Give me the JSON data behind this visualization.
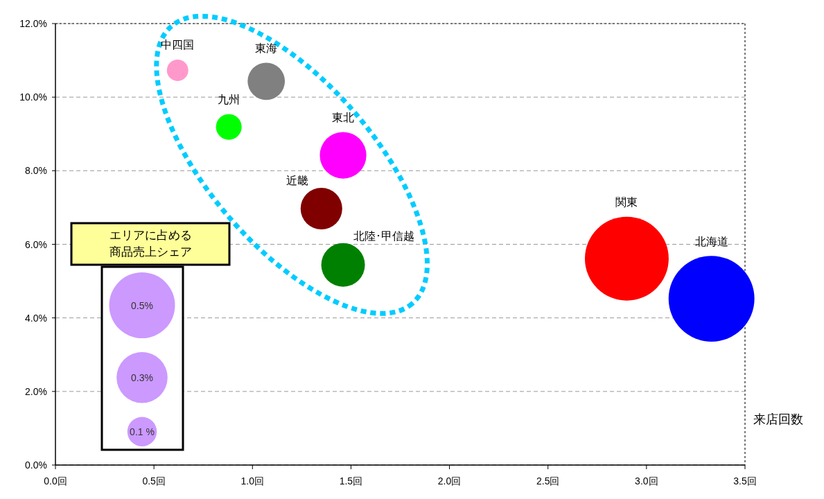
{
  "chart_data": {
    "type": "bubble",
    "xlabel": "来店回数",
    "legend_title": "エリアに占める商品売上シェア",
    "xlim": [
      0,
      3.5
    ],
    "xticks": [
      {
        "value": 0,
        "label": "0.0回"
      },
      {
        "value": 0.5,
        "label": "0.5回"
      },
      {
        "value": 1,
        "label": "1.0回"
      },
      {
        "value": 1.5,
        "label": "1.5回"
      },
      {
        "value": 2,
        "label": "2.0回"
      },
      {
        "value": 2.5,
        "label": "2.5回"
      },
      {
        "value": 3,
        "label": "3.0回"
      },
      {
        "value": 3.5,
        "label": "3.5回"
      }
    ],
    "ylim": [
      0,
      12
    ],
    "yticks": [
      {
        "value": 0,
        "label": "0.0%"
      },
      {
        "value": 2,
        "label": "2.0%"
      },
      {
        "value": 4,
        "label": "4.0%"
      },
      {
        "value": 6,
        "label": "6.0%"
      },
      {
        "value": 8,
        "label": "8.0%"
      },
      {
        "value": 10,
        "label": "10.0%"
      },
      {
        "value": 12,
        "label": "12.0%"
      }
    ],
    "grid": "y",
    "size_legend": [
      {
        "value": 0.5,
        "label": "0.5%"
      },
      {
        "value": 0.3,
        "label": "0.3%"
      },
      {
        "value": 0.1,
        "label": "0.1 %"
      }
    ],
    "series": [
      {
        "name": "中四国",
        "color": "#ff99cc",
        "x": [
          0.62
        ],
        "values": [
          10.73
        ],
        "sizes": [
          0.053
        ]
      },
      {
        "name": "東海",
        "color": "#808080",
        "x": [
          1.07
        ],
        "values": [
          10.43
        ],
        "sizes": [
          0.16
        ]
      },
      {
        "name": "九州",
        "color": "#00ff00",
        "x": [
          0.88
        ],
        "values": [
          9.19
        ],
        "sizes": [
          0.076
        ]
      },
      {
        "name": "東北",
        "color": "#ff00ff",
        "x": [
          1.46
        ],
        "values": [
          8.42
        ],
        "sizes": [
          0.25
        ]
      },
      {
        "name": "近畿",
        "color": "#800000",
        "x": [
          1.35
        ],
        "values": [
          6.97
        ],
        "sizes": [
          0.2
        ]
      },
      {
        "name": "北陸･甲信越",
        "color": "#008000",
        "x": [
          1.46
        ],
        "values": [
          5.44
        ],
        "sizes": [
          0.22
        ]
      },
      {
        "name": "関東",
        "color": "#ff0000",
        "x": [
          2.9
        ],
        "values": [
          5.61
        ],
        "sizes": [
          0.81
        ]
      },
      {
        "name": "北海道",
        "color": "#0000ff",
        "x": [
          3.33
        ],
        "values": [
          4.52
        ],
        "sizes": [
          0.85
        ]
      }
    ]
  }
}
